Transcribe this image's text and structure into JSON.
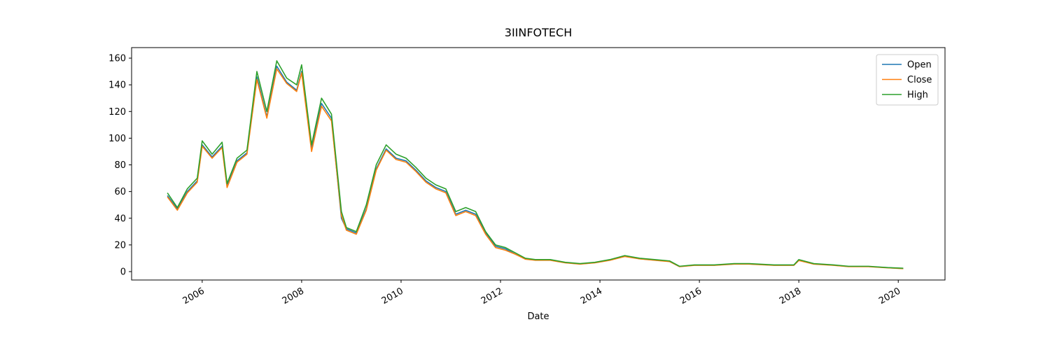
{
  "chart_data": {
    "type": "line",
    "title": "3IINFOTECH",
    "xlabel": "Date",
    "x": [
      2005.3,
      2005.5,
      2005.7,
      2005.9,
      2006.0,
      2006.2,
      2006.4,
      2006.5,
      2006.7,
      2006.9,
      2007.1,
      2007.3,
      2007.5,
      2007.7,
      2007.9,
      2008.0,
      2008.2,
      2008.4,
      2008.6,
      2008.8,
      2008.9,
      2009.1,
      2009.3,
      2009.5,
      2009.7,
      2009.9,
      2010.1,
      2010.3,
      2010.5,
      2010.7,
      2010.9,
      2011.1,
      2011.3,
      2011.5,
      2011.7,
      2011.9,
      2012.1,
      2012.3,
      2012.5,
      2012.7,
      2013.0,
      2013.3,
      2013.6,
      2013.9,
      2014.2,
      2014.5,
      2014.8,
      2015.1,
      2015.4,
      2015.6,
      2015.9,
      2016.3,
      2016.7,
      2017.0,
      2017.5,
      2017.9,
      2018.0,
      2018.3,
      2018.7,
      2019.0,
      2019.4,
      2019.8,
      2020.1
    ],
    "series": [
      {
        "name": "Open",
        "color": "#1f77b4",
        "values": [
          57,
          47,
          60,
          68,
          95,
          86,
          94,
          64,
          83,
          89,
          146,
          116,
          154,
          142,
          136,
          150,
          92,
          126,
          115,
          40,
          32,
          29,
          47,
          77,
          92,
          85,
          83,
          76,
          68,
          63,
          60,
          43,
          46,
          43,
          29,
          19,
          17,
          13,
          9.5,
          8.6,
          8.6,
          6.7,
          5.7,
          6.7,
          8.6,
          11.5,
          9.6,
          8.6,
          7.6,
          3.8,
          4.8,
          4.8,
          5.7,
          5.7,
          4.8,
          4.8,
          8.5,
          5.7,
          4.8,
          3.8,
          3.8,
          2.9,
          2.3
        ]
      },
      {
        "name": "Close",
        "color": "#ff7f0e",
        "values": [
          56,
          46,
          59,
          67,
          94,
          85,
          93,
          63,
          82,
          88,
          144,
          115,
          152,
          141,
          135,
          149,
          90,
          124,
          113,
          42,
          31,
          28,
          46,
          76,
          91,
          84,
          82,
          75,
          67,
          62,
          59,
          42,
          45,
          42,
          28,
          18,
          16,
          13,
          9.3,
          8.5,
          8.5,
          6.6,
          5.6,
          6.6,
          8.5,
          11.3,
          9.5,
          8.5,
          7.5,
          3.7,
          4.7,
          4.7,
          5.6,
          5.6,
          4.7,
          4.7,
          8.3,
          5.6,
          4.7,
          3.7,
          3.7,
          2.8,
          2.2
        ]
      },
      {
        "name": "High",
        "color": "#2ca02c",
        "values": [
          59,
          48,
          62,
          70,
          98,
          88,
          97,
          66,
          85,
          91,
          150,
          120,
          158,
          145,
          140,
          155,
          95,
          130,
          118,
          45,
          33,
          30,
          50,
          80,
          95,
          88,
          85,
          78,
          70,
          65,
          62,
          45,
          48,
          45,
          30,
          20,
          18,
          14,
          10,
          9,
          9,
          7,
          6,
          7,
          9,
          12,
          10,
          9,
          8,
          4,
          5,
          5,
          6,
          6,
          5,
          5,
          9,
          6,
          5,
          4,
          4,
          3,
          2.5
        ]
      }
    ],
    "xlim": [
      2004.58,
      2020.94
    ],
    "xticks": [
      2006,
      2008,
      2010,
      2012,
      2014,
      2016,
      2018,
      2020
    ],
    "ylim": [
      -6.3,
      167.9
    ],
    "yticks": [
      0,
      20,
      40,
      60,
      80,
      100,
      120,
      140,
      160
    ],
    "legend": "upper right"
  }
}
